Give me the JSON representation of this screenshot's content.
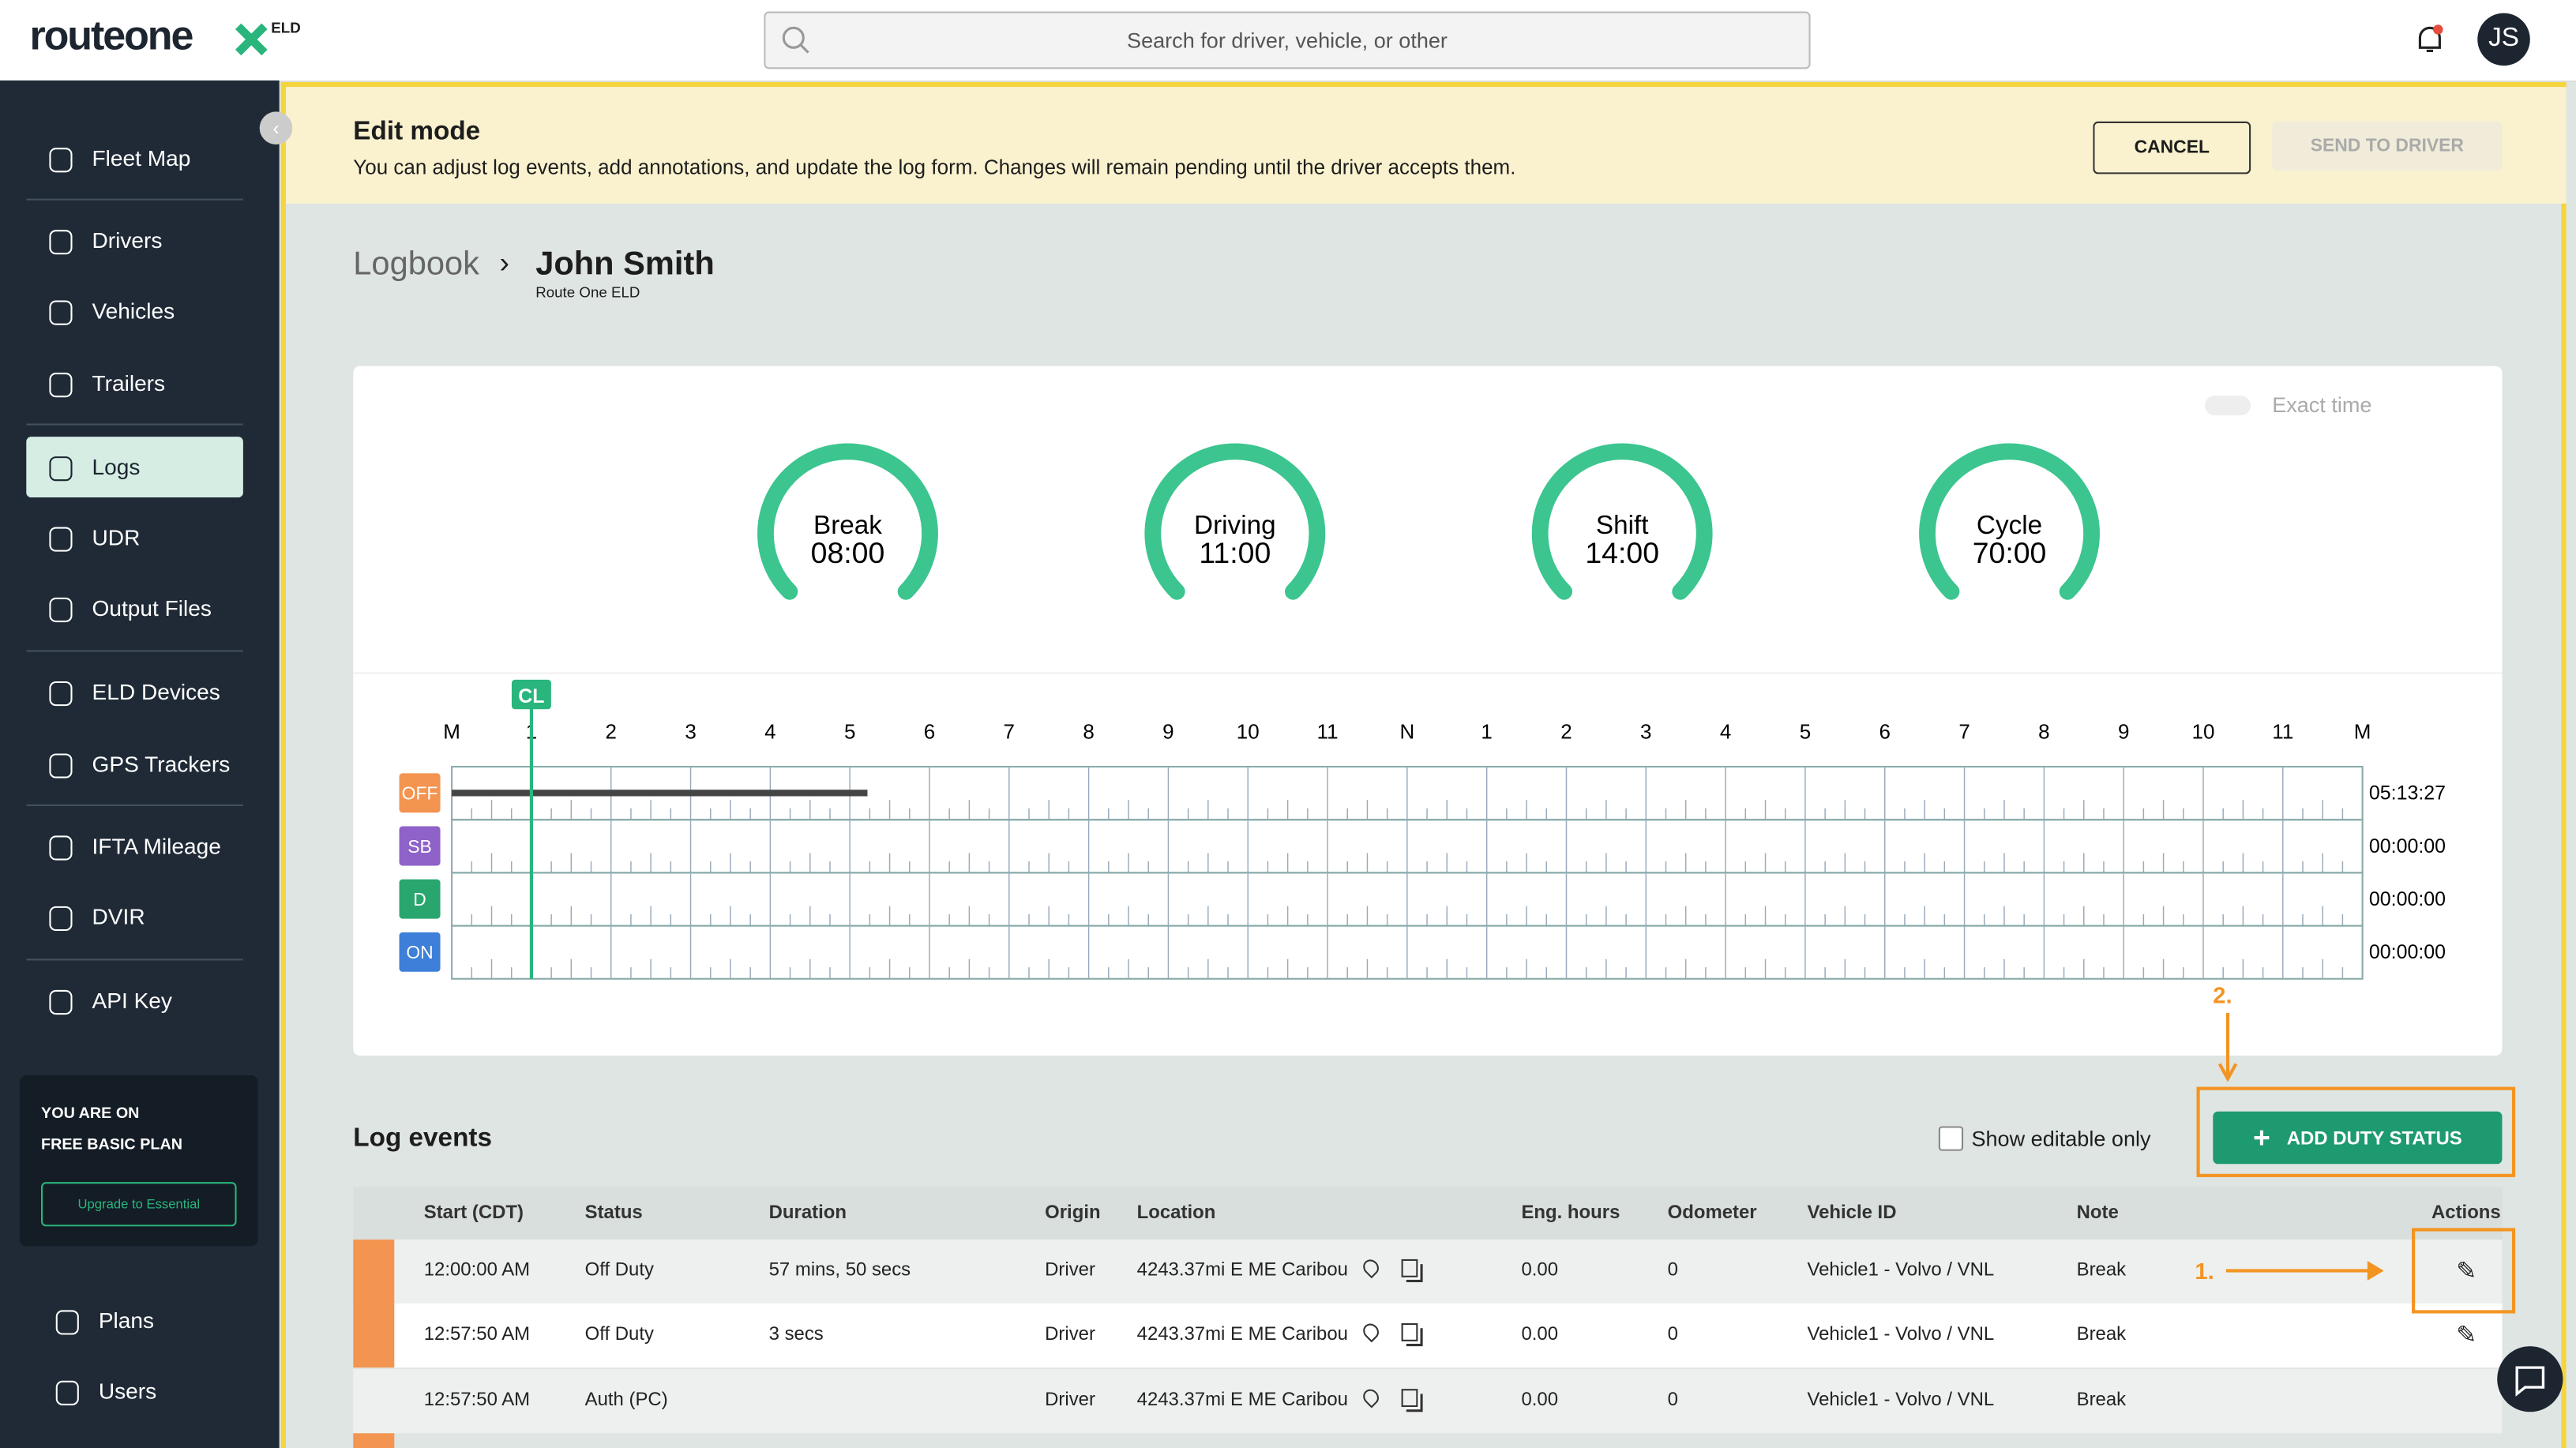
{
  "header": {
    "logo": "routeone",
    "logo_badge": "ELD",
    "search_placeholder": "Search for driver, vehicle, or other",
    "avatar": "JS"
  },
  "sidebar": {
    "items": [
      "Fleet Map",
      "Drivers",
      "Vehicles",
      "Trailers",
      "Logs",
      "UDR",
      "Output Files",
      "ELD Devices",
      "GPS Trackers",
      "IFTA Mileage",
      "DVIR",
      "API Key"
    ],
    "plan": {
      "line1": "YOU ARE ON",
      "line2": "FREE BASIC PLAN",
      "button": "Upgrade to Essential"
    },
    "bottom_items": [
      "Plans",
      "Users"
    ]
  },
  "edit_banner": {
    "title": "Edit mode",
    "text": "You can adjust log events, add annotations, and update the log form. Changes will remain pending until the driver accepts them.",
    "cancel": "CANCEL",
    "send": "SEND TO DRIVER"
  },
  "breadcrumb": {
    "parent": "Logbook",
    "current": "John Smith",
    "subtitle": "Route One ELD"
  },
  "exact_time": "Exact time",
  "gauges": [
    {
      "label": "Break",
      "value": "08:00"
    },
    {
      "label": "Driving",
      "value": "11:00"
    },
    {
      "label": "Shift",
      "value": "14:00"
    },
    {
      "label": "Cycle",
      "value": "70:00"
    }
  ],
  "log_chart": {
    "marker": "CL",
    "hours": [
      "M",
      "1",
      "2",
      "3",
      "4",
      "5",
      "6",
      "7",
      "8",
      "9",
      "10",
      "11",
      "N",
      "1",
      "2",
      "3",
      "4",
      "5",
      "6",
      "7",
      "8",
      "9",
      "10",
      "11",
      "M"
    ],
    "rows": [
      {
        "status": "OFF",
        "total": "05:13:27"
      },
      {
        "status": "SB",
        "total": "00:00:00"
      },
      {
        "status": "D",
        "total": "00:00:00"
      },
      {
        "status": "ON",
        "total": "00:00:00"
      }
    ]
  },
  "log_events": {
    "title": "Log events",
    "show_editable": "Show editable only",
    "add_button": "ADD DUTY STATUS",
    "columns": [
      "Start (CDT)",
      "Status",
      "Duration",
      "Origin",
      "Location",
      "Eng. hours",
      "Odometer",
      "Vehicle ID",
      "Note",
      "Actions"
    ],
    "rows": [
      {
        "start": "12:00:00 AM",
        "status": "Off Duty",
        "duration": "57 mins, 50 secs",
        "origin": "Driver",
        "location": "4243.37mi E ME Caribou",
        "eng_hours": "0.00",
        "odometer": "0",
        "vehicle": "Vehicle1 - Volvo / VNL",
        "note": "Break"
      },
      {
        "start": "12:57:50 AM",
        "status": "Off Duty",
        "duration": "3 secs",
        "origin": "Driver",
        "location": "4243.37mi E ME Caribou",
        "eng_hours": "0.00",
        "odometer": "0",
        "vehicle": "Vehicle1 - Volvo / VNL",
        "note": "Break"
      },
      {
        "start": "12:57:50 AM",
        "status": "Auth (PC)",
        "origin": "Driver",
        "location": "4243.37mi E ME Caribou",
        "eng_hours": "0.00",
        "odometer": "0",
        "vehicle": "Vehicle1 - Volvo / VNL",
        "note": "Break"
      }
    ]
  },
  "annotations": {
    "step1": "1.",
    "step2": "2."
  }
}
